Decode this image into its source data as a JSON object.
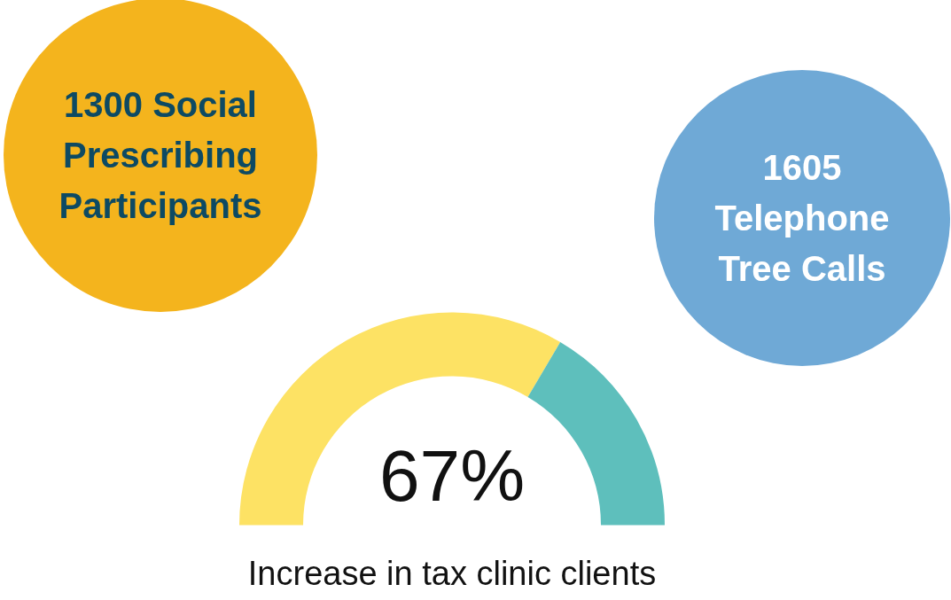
{
  "chart_data": [
    {
      "type": "other",
      "annotations": [
        "1300 Social Prescribing Participants"
      ]
    },
    {
      "type": "other",
      "annotations": [
        "1605 Telephone Tree Calls"
      ]
    },
    {
      "type": "donut",
      "categories": [
        null,
        null
      ],
      "values": [
        67,
        33
      ],
      "colors": [
        "#fde264",
        "#5ebfbc"
      ],
      "annotations": [
        "67%",
        "Increase in tax clinic clients"
      ]
    }
  ]
}
